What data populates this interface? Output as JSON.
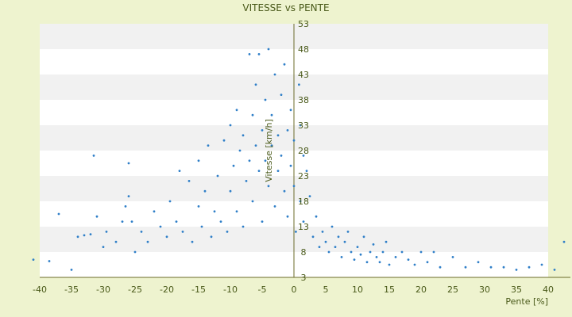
{
  "chart_data": {
    "type": "scatter",
    "title": "VITESSE vs PENTE",
    "xlabel": "Pente [%]",
    "ylabel": "Vitesse [km/h]",
    "xlim": [
      -40,
      40
    ],
    "ylim": [
      3,
      53
    ],
    "x_ticks": [
      -40,
      -35,
      -30,
      -25,
      -20,
      -15,
      -10,
      -5,
      0,
      5,
      10,
      15,
      20,
      25,
      30,
      35,
      40
    ],
    "y_ticks": [
      3,
      8,
      13,
      18,
      23,
      28,
      33,
      38,
      43,
      48,
      53
    ],
    "grid": "horizontal-bands",
    "legend": "none",
    "colors": {
      "background": "#eef3cf",
      "plot_band_light": "#ffffff",
      "plot_band_dark": "#f1f1f1",
      "point": "#2f7fc8",
      "point_secondary": "#a89a20",
      "axis": "#6b6b2a",
      "text": "#4a5a1a"
    },
    "series": [
      {
        "name": "",
        "points": [
          [
            -41,
            6.5
          ],
          [
            -38.5,
            6.2
          ],
          [
            -37,
            15.5
          ],
          [
            -35,
            4.5
          ],
          [
            -34,
            11
          ],
          [
            -33,
            11.3
          ],
          [
            -32,
            11.5
          ],
          [
            -31.5,
            27
          ],
          [
            -31,
            15
          ],
          [
            -30,
            9
          ],
          [
            -29.5,
            12
          ],
          [
            -28,
            10
          ],
          [
            -27,
            14
          ],
          [
            -26.5,
            17
          ],
          [
            -26,
            19
          ],
          [
            -26,
            25.5
          ],
          [
            -25.5,
            14
          ],
          [
            -25,
            8
          ],
          [
            -24,
            12
          ],
          [
            -23,
            10
          ],
          [
            -22,
            16
          ],
          [
            -21,
            13
          ],
          [
            -20,
            11
          ],
          [
            -19.5,
            18
          ],
          [
            -18.5,
            14
          ],
          [
            -18,
            24
          ],
          [
            -17.5,
            12
          ],
          [
            -16.5,
            22
          ],
          [
            -16,
            10
          ],
          [
            -15,
            17
          ],
          [
            -15,
            26
          ],
          [
            -14.5,
            13
          ],
          [
            -14,
            20
          ],
          [
            -13.5,
            29
          ],
          [
            -13,
            11
          ],
          [
            -12.5,
            16
          ],
          [
            -12,
            23
          ],
          [
            -11.5,
            14
          ],
          [
            -11,
            30
          ],
          [
            -10.5,
            12
          ],
          [
            -10,
            33
          ],
          [
            -10,
            20
          ],
          [
            -9.5,
            25
          ],
          [
            -9,
            16
          ],
          [
            -9,
            36
          ],
          [
            -8.5,
            28
          ],
          [
            -8,
            13
          ],
          [
            -8,
            31
          ],
          [
            -7.5,
            22
          ],
          [
            -7,
            47
          ],
          [
            -7,
            26
          ],
          [
            -6.5,
            35
          ],
          [
            -6.5,
            18
          ],
          [
            -6,
            29
          ],
          [
            -6,
            41
          ],
          [
            -5.5,
            24
          ],
          [
            -5.5,
            47
          ],
          [
            -5,
            32
          ],
          [
            -5,
            14
          ],
          [
            -4.5,
            38
          ],
          [
            -4.5,
            26
          ],
          [
            -4,
            48
          ],
          [
            -4,
            21
          ],
          [
            -3.5,
            35
          ],
          [
            -3.5,
            29
          ],
          [
            -3,
            43
          ],
          [
            -3,
            17
          ],
          [
            -2.5,
            31
          ],
          [
            -2.5,
            24
          ],
          [
            -2,
            39
          ],
          [
            -2,
            27
          ],
          [
            -1.5,
            45
          ],
          [
            -1.5,
            20
          ],
          [
            -1,
            32
          ],
          [
            -1,
            15
          ],
          [
            -0.5,
            36
          ],
          [
            -0.5,
            25
          ],
          [
            0,
            30
          ],
          [
            0,
            21
          ],
          [
            0.3,
            12
          ],
          [
            0.8,
            41
          ],
          [
            1,
            33
          ],
          [
            1,
            18
          ],
          [
            1.5,
            27
          ],
          [
            1.5,
            14
          ],
          [
            2,
            24
          ],
          [
            2.5,
            19
          ],
          [
            3,
            11
          ],
          [
            3.5,
            15
          ],
          [
            4,
            9
          ],
          [
            4.5,
            12
          ],
          [
            5,
            10
          ],
          [
            5.5,
            8
          ],
          [
            6,
            13
          ],
          [
            6.5,
            9
          ],
          [
            7,
            11
          ],
          [
            7.5,
            7
          ],
          [
            8,
            10
          ],
          [
            8.5,
            12
          ],
          [
            9,
            8
          ],
          [
            9.5,
            6.5
          ],
          [
            10,
            9
          ],
          [
            10.5,
            7.5
          ],
          [
            11,
            11
          ],
          [
            11.5,
            6
          ],
          [
            12,
            8
          ],
          [
            12.5,
            9.5
          ],
          [
            13,
            7
          ],
          [
            13.5,
            6
          ],
          [
            14,
            8
          ],
          [
            14.5,
            10
          ],
          [
            15,
            5.5
          ],
          [
            16,
            7
          ],
          [
            17,
            8
          ],
          [
            18,
            6.5
          ],
          [
            19,
            5.5
          ],
          [
            20,
            8
          ],
          [
            21,
            6
          ],
          [
            22,
            8
          ],
          [
            23,
            5
          ],
          [
            25,
            7
          ],
          [
            27,
            5
          ],
          [
            29,
            6
          ],
          [
            31,
            5
          ],
          [
            33,
            5
          ],
          [
            35,
            4.5
          ],
          [
            37,
            5
          ],
          [
            39,
            5.5
          ],
          [
            41,
            4.5
          ],
          [
            42.5,
            10
          ]
        ]
      }
    ]
  }
}
